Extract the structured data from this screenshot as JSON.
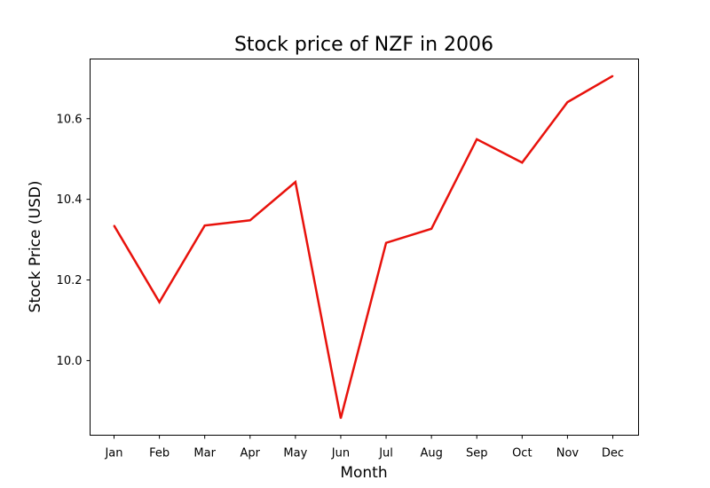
{
  "chart_data": {
    "type": "line",
    "title": "Stock price of NZF in 2006",
    "xlabel": "Month",
    "ylabel": "Stock Price (USD)",
    "categories": [
      "Jan",
      "Feb",
      "Mar",
      "Apr",
      "May",
      "Jun",
      "Jul",
      "Aug",
      "Sep",
      "Oct",
      "Nov",
      "Dec"
    ],
    "series": [
      {
        "color": "#e8120c",
        "values": [
          10.335,
          10.145,
          10.335,
          10.348,
          10.443,
          9.857,
          10.292,
          10.327,
          10.549,
          10.491,
          10.641,
          10.706
        ]
      }
    ],
    "yticks": [
      10.0,
      10.2,
      10.4,
      10.6
    ],
    "ytick_labels": [
      "10.0",
      "10.2",
      "10.4",
      "10.6"
    ],
    "ylim": [
      9.815,
      10.748
    ],
    "grid": false,
    "legend": "none"
  }
}
